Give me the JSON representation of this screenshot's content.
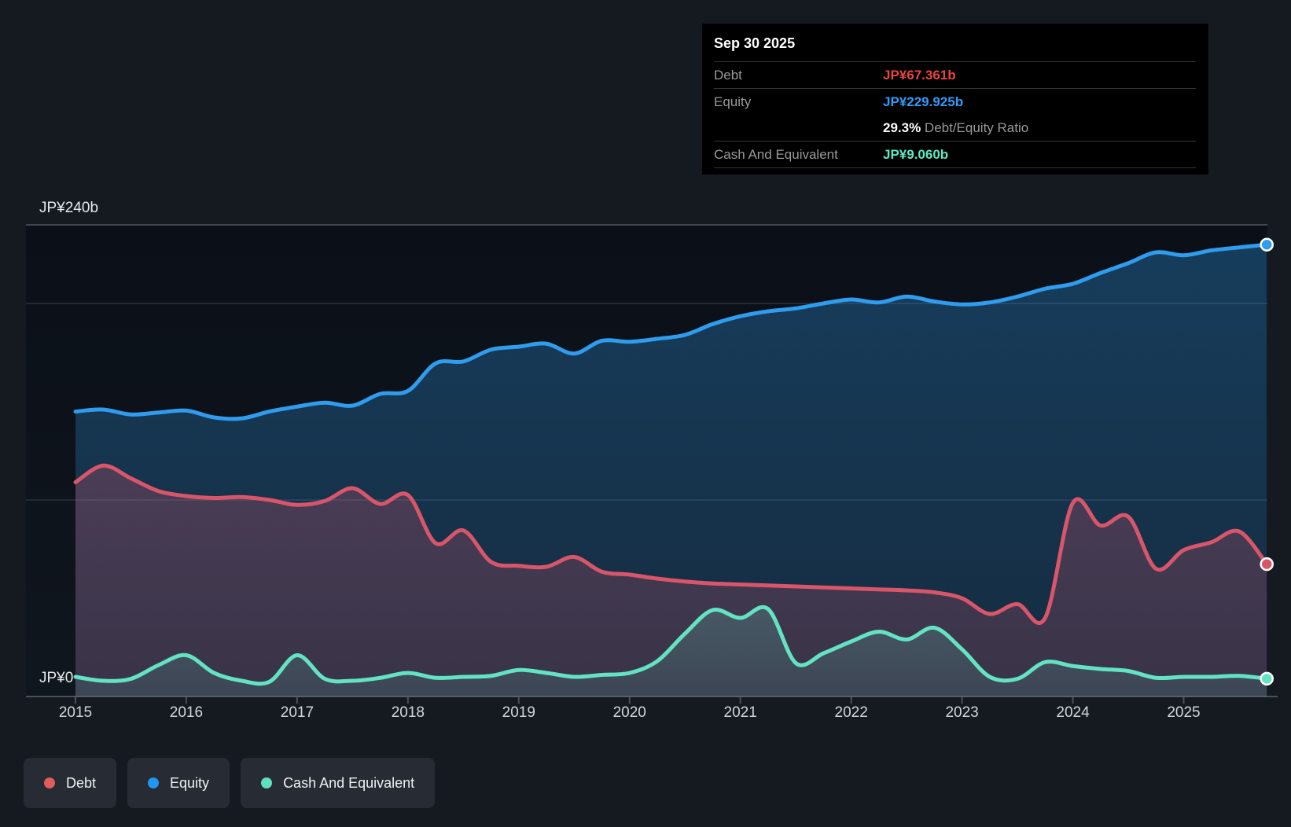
{
  "accent_colors": {
    "debt": "#d9556a",
    "debt_bright": "#e8453f",
    "equity": "#2f9ced",
    "equity_bright": "#2f9bfa",
    "cash": "#63e3c3",
    "background": "#151a21",
    "plot_background": "#0c1117",
    "gridline_faint": "#29303a",
    "gridline_strong": "#3e4651",
    "axis_line": "#4a525e"
  },
  "tooltip": {
    "title": "Sep 30 2025",
    "debt_label": "Debt",
    "debt_value": "JP¥67.361b",
    "equity_label": "Equity",
    "equity_value": "JP¥229.925b",
    "ratio_value": "29.3%",
    "ratio_label": " Debt/Equity Ratio",
    "cash_label": "Cash And Equivalent",
    "cash_value": "JP¥9.060b"
  },
  "legend": {
    "items": [
      {
        "label": "Debt",
        "color": "#e25c5c"
      },
      {
        "label": "Equity",
        "color": "#2196f3"
      },
      {
        "label": "Cash And Equivalent",
        "color": "#5fe0bf"
      }
    ]
  },
  "chart_data": {
    "type": "area",
    "title": "Debt to Equity history",
    "unit": "JP¥ billions",
    "ylim": [
      0,
      240
    ],
    "grid_values": [
      240,
      200,
      100,
      0
    ],
    "y_labels": [
      {
        "value": 240,
        "label": "JP¥240b"
      },
      {
        "value": 0,
        "label": "JP¥0"
      }
    ],
    "x_ticks": [
      2015,
      2016,
      2017,
      2018,
      2019,
      2020,
      2021,
      2022,
      2023,
      2024,
      2025
    ],
    "x_tick_labels": [
      "2015",
      "2016",
      "2017",
      "2018",
      "2019",
      "2020",
      "2021",
      "2022",
      "2023",
      "2024",
      "2025"
    ],
    "x": [
      2015,
      2015.25,
      2015.5,
      2015.75,
      2016,
      2016.25,
      2016.5,
      2016.75,
      2017,
      2017.25,
      2017.5,
      2017.75,
      2018,
      2018.25,
      2018.5,
      2018.75,
      2019,
      2019.25,
      2019.5,
      2019.75,
      2020,
      2020.25,
      2020.5,
      2020.75,
      2021,
      2021.25,
      2021.5,
      2021.75,
      2022,
      2022.25,
      2022.5,
      2022.75,
      2023,
      2023.25,
      2023.5,
      2023.75,
      2024,
      2024.25,
      2024.5,
      2024.75,
      2025,
      2025.25,
      2025.5,
      2025.75
    ],
    "series": [
      {
        "name": "Equity",
        "color": "#2f9ced",
        "values": [
          145,
          146,
          143.5,
          144.5,
          145.5,
          142,
          141.5,
          145,
          147.5,
          149.5,
          148,
          154,
          155.5,
          169.5,
          170.5,
          176.5,
          178,
          179.5,
          174.5,
          181,
          180.5,
          182,
          184,
          189.5,
          193.5,
          196,
          197.5,
          200,
          202,
          200.5,
          203.5,
          201,
          199.5,
          200.5,
          203.5,
          207.5,
          210,
          215.5,
          220.5,
          226,
          224.5,
          227,
          228.5,
          229.925
        ]
      },
      {
        "name": "Debt",
        "color": "#d9556a",
        "values": [
          109,
          117.5,
          111,
          104.5,
          102,
          101,
          101.5,
          100,
          97.5,
          99.5,
          106,
          98,
          102.5,
          78,
          84.5,
          68.5,
          66.5,
          66,
          71,
          63.5,
          62,
          60,
          58.5,
          57.5,
          57,
          56.5,
          56,
          55.5,
          55,
          54.5,
          54,
          53,
          50,
          42,
          47,
          40,
          98.5,
          87,
          91.5,
          65,
          74.5,
          78.5,
          84,
          67.361
        ]
      },
      {
        "name": "Cash And Equivalent",
        "color": "#63e3c3",
        "values": [
          10,
          8,
          9,
          16,
          21,
          12,
          8,
          7.5,
          21,
          9,
          8,
          9.5,
          12,
          9.5,
          10,
          10.5,
          13.5,
          12,
          10,
          11,
          12,
          18,
          32,
          44,
          40,
          44.5,
          17,
          22,
          28,
          33,
          29,
          35,
          24,
          10,
          9,
          17.5,
          15.5,
          14,
          13,
          9.5,
          10,
          10,
          10.5,
          9.06
        ]
      }
    ],
    "end_date_label": "Sep 30 2025"
  }
}
